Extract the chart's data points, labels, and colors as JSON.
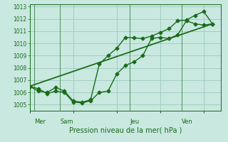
{
  "bg_color": "#c8e8e0",
  "grid_color": "#9dc8c0",
  "line_color": "#1a6b1a",
  "ylim": [
    1004.5,
    1013.2
  ],
  "xlim": [
    0,
    22
  ],
  "yticks": [
    1005,
    1006,
    1007,
    1008,
    1009,
    1010,
    1011,
    1012,
    1013
  ],
  "xlabel": "Pression niveau de la mer( hPa )",
  "day_labels": [
    "Mer",
    "Sam",
    "Jeu",
    "Ven"
  ],
  "day_positions": [
    0.5,
    3.5,
    11.5,
    17.5
  ],
  "vline_positions": [
    0.5,
    3.5,
    11.5,
    17.5
  ],
  "series1": {
    "x": [
      0,
      1,
      2,
      3,
      4,
      5,
      6,
      7,
      8,
      9,
      10,
      11,
      12,
      13,
      14,
      15,
      16,
      17,
      18,
      19,
      20,
      21
    ],
    "y": [
      1006.5,
      1006.3,
      1005.9,
      1006.1,
      1006.0,
      1005.2,
      1005.15,
      1005.3,
      1006.0,
      1006.1,
      1007.5,
      1008.2,
      1008.5,
      1009.0,
      1010.4,
      1010.5,
      1010.4,
      1010.7,
      1011.85,
      1011.6,
      1011.5,
      1011.6
    ],
    "marker": "D",
    "markersize": 2.5,
    "linewidth": 1.0
  },
  "series2": {
    "x": [
      0,
      1,
      2,
      3,
      4,
      5,
      6,
      7,
      8,
      9,
      10,
      11,
      12,
      13,
      14,
      15,
      16,
      17,
      18,
      19,
      20,
      21
    ],
    "y": [
      1006.5,
      1006.1,
      1006.0,
      1006.4,
      1006.1,
      1005.3,
      1005.2,
      1005.4,
      1008.3,
      1009.0,
      1009.6,
      1010.5,
      1010.45,
      1010.4,
      1010.6,
      1010.9,
      1011.2,
      1011.85,
      1011.9,
      1012.3,
      1012.6,
      1011.6
    ],
    "marker": "D",
    "markersize": 2.5,
    "linewidth": 1.0
  },
  "series3": {
    "x": [
      0,
      21
    ],
    "y": [
      1006.5,
      1011.6
    ],
    "linewidth": 1.3
  }
}
